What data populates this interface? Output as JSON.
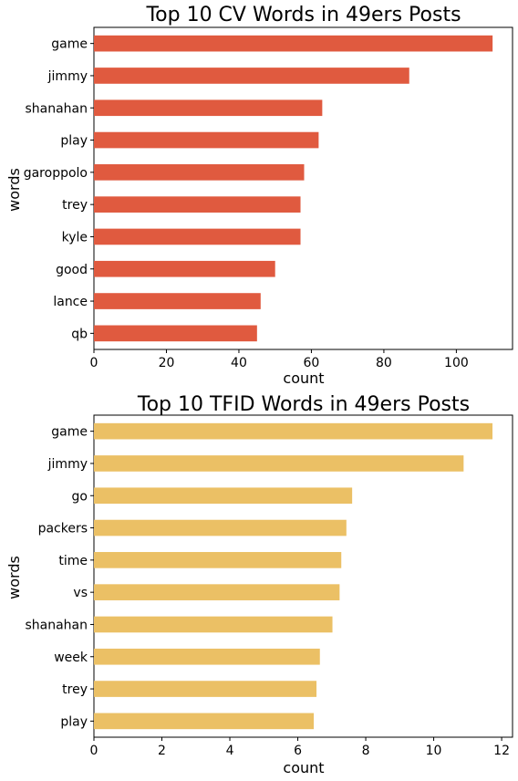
{
  "chart_data": [
    {
      "type": "bar",
      "orientation": "horizontal",
      "title": "Top 10 CV Words in 49ers Posts",
      "xlabel": "count",
      "ylabel": "words",
      "categories": [
        "qb",
        "lance",
        "good",
        "kyle",
        "trey",
        "garoppolo",
        "play",
        "shanahan",
        "jimmy",
        "game"
      ],
      "values": [
        45,
        46,
        50,
        57,
        57,
        58,
        62,
        63,
        87,
        110
      ],
      "xlim": [
        0,
        115.5
      ],
      "xticks": [
        0,
        20,
        40,
        60,
        80,
        100
      ],
      "color": "#e05a3f",
      "grid": false
    },
    {
      "type": "bar",
      "orientation": "horizontal",
      "title": "Top 10 TFID Words in 49ers Posts",
      "xlabel": "count",
      "ylabel": "words",
      "categories": [
        "play",
        "trey",
        "week",
        "shanahan",
        "vs",
        "time",
        "packers",
        "go",
        "jimmy",
        "game"
      ],
      "values": [
        6.47,
        6.55,
        6.65,
        7.02,
        7.23,
        7.28,
        7.43,
        7.6,
        10.88,
        11.73
      ],
      "xlim": [
        0,
        12.32
      ],
      "xticks": [
        0,
        2,
        4,
        6,
        8,
        10,
        12
      ],
      "color": "#ebc065",
      "grid": false
    }
  ]
}
